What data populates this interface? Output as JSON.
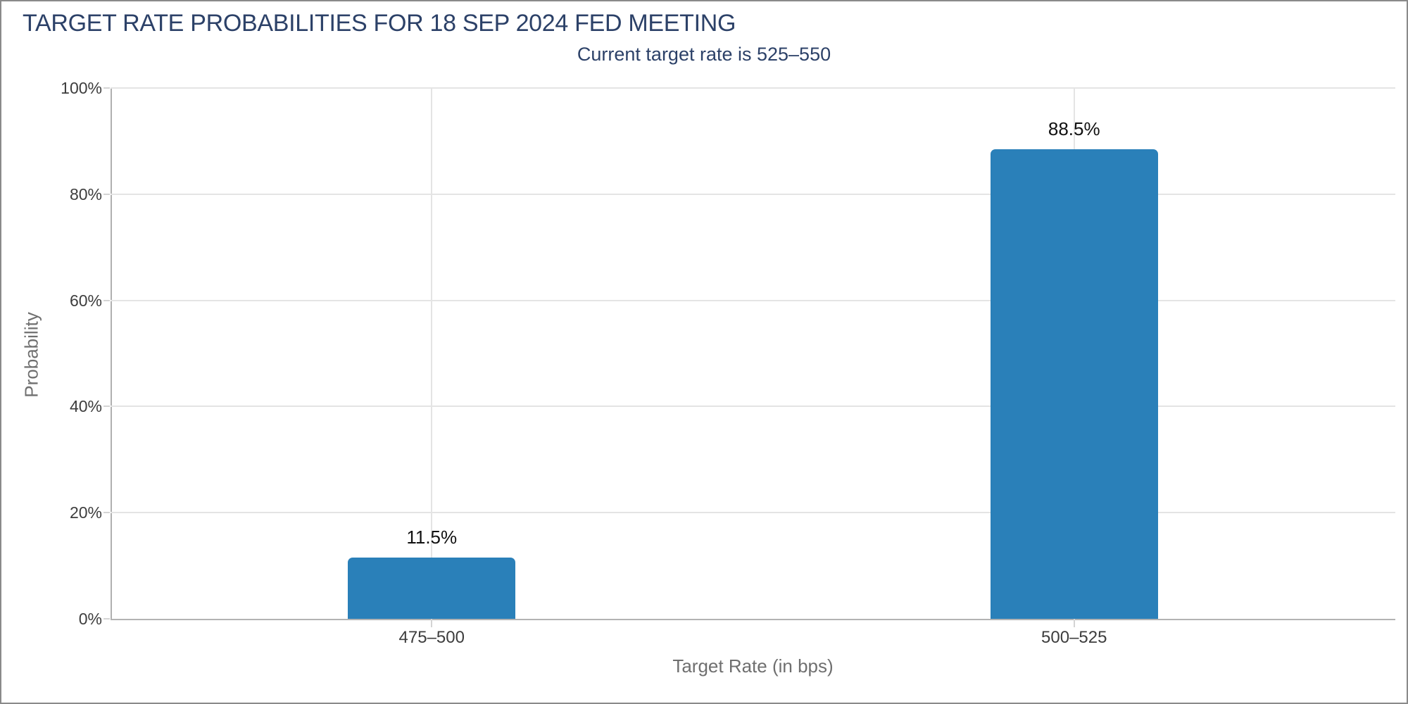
{
  "header": {
    "title": "TARGET RATE PROBABILITIES FOR 18 SEP 2024 FED MEETING",
    "subtitle": "Current target rate is 525–550"
  },
  "colors": {
    "title_navy": "#2c4168",
    "bar_blue": "#2a80b9",
    "gridline": "#e4e4e4",
    "axis_line": "#b0b0b0",
    "tick_label": "#3d3d3d",
    "axis_title": "#6f6f6f",
    "value_label": "#111111",
    "frame_border": "#8a8a8a"
  },
  "chart_data": {
    "type": "bar",
    "title": "TARGET RATE PROBABILITIES FOR 18 SEP 2024 FED MEETING",
    "subtitle": "Current target rate is 525–550",
    "categories": [
      "475–500",
      "500–525"
    ],
    "values": [
      11.5,
      88.5
    ],
    "value_labels": [
      "11.5%",
      "88.5%"
    ],
    "xlabel": "Target Rate (in bps)",
    "ylabel": "Probability",
    "ylim": [
      0,
      100
    ],
    "ytick_step": 20,
    "ytick_labels": [
      "0%",
      "20%",
      "40%",
      "60%",
      "80%",
      "100%"
    ],
    "grid": true,
    "legend_position": "none"
  }
}
